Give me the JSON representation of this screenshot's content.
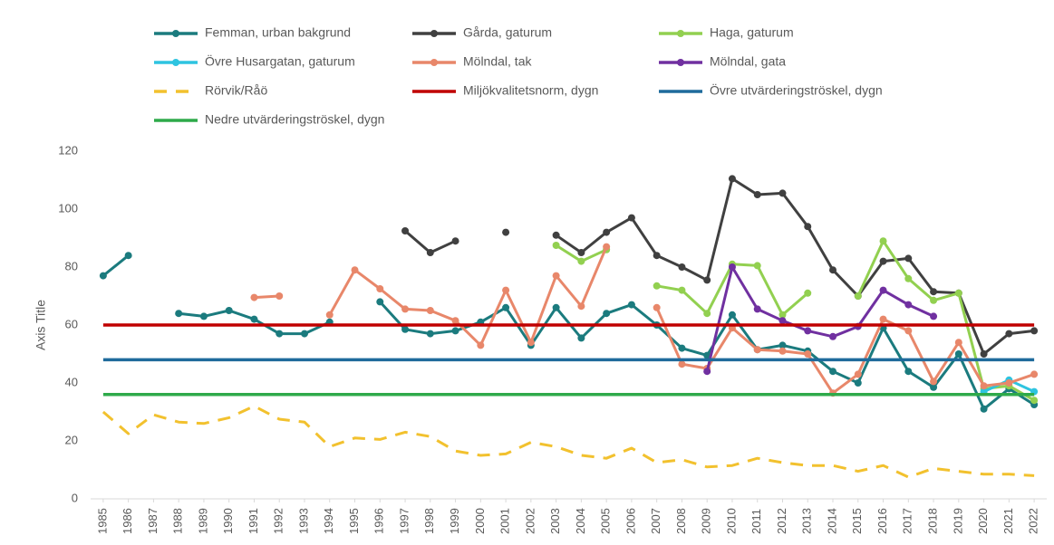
{
  "chart_data": {
    "type": "line",
    "y_label": "Axis Title",
    "categories": [
      "1985",
      "1986",
      "1987",
      "1988",
      "1989",
      "1990",
      "1991",
      "1992",
      "1993",
      "1994",
      "1995",
      "1996",
      "1997",
      "1998",
      "1999",
      "2000",
      "2001",
      "2002",
      "2003",
      "2004",
      "2005",
      "2006",
      "2007",
      "2008",
      "2009",
      "2010",
      "2011",
      "2012",
      "2013",
      "2014",
      "2015",
      "2016",
      "2017",
      "2018",
      "2019",
      "2020",
      "2021",
      "2022"
    ],
    "ylim": [
      0,
      120
    ],
    "yticks": [
      0,
      20,
      40,
      60,
      80,
      100,
      120
    ],
    "series": [
      {
        "name": "Femman, urban bakgrund",
        "color": "#1b7b7e",
        "markers": true,
        "values": [
          77,
          84,
          null,
          64,
          63,
          65,
          62,
          57,
          57,
          61,
          null,
          68,
          58.5,
          57,
          58,
          61,
          66,
          53,
          66,
          55.5,
          64,
          67,
          60,
          52,
          49.5,
          63.5,
          51.5,
          53,
          51,
          44,
          40,
          59,
          44,
          38.5,
          50,
          31,
          38,
          32.5
        ]
      },
      {
        "name": "Gårda, gaturum",
        "color": "#404040",
        "markers": true,
        "values": [
          null,
          null,
          null,
          null,
          null,
          null,
          null,
          null,
          null,
          null,
          null,
          null,
          92.5,
          85,
          89,
          null,
          92,
          null,
          91,
          85,
          92,
          97,
          84,
          80,
          75.5,
          110.5,
          105,
          105.5,
          94,
          79,
          70,
          82,
          83,
          71.5,
          71,
          50,
          57,
          58
        ]
      },
      {
        "name": "Haga, gaturum",
        "color": "#92d050",
        "markers": true,
        "values": [
          null,
          null,
          null,
          null,
          null,
          null,
          null,
          null,
          null,
          null,
          null,
          null,
          null,
          null,
          null,
          null,
          null,
          null,
          87.5,
          82,
          86,
          null,
          73.5,
          72,
          64,
          81,
          80.5,
          63.5,
          71,
          null,
          70,
          89,
          76,
          68.5,
          71,
          38,
          39,
          34
        ]
      },
      {
        "name": "Övre Husargatan, gaturum",
        "color": "#2ec4e0",
        "markers": true,
        "values": [
          null,
          null,
          null,
          null,
          null,
          null,
          null,
          null,
          null,
          null,
          null,
          null,
          null,
          null,
          null,
          null,
          null,
          null,
          null,
          null,
          null,
          null,
          null,
          null,
          null,
          null,
          null,
          null,
          null,
          null,
          null,
          null,
          null,
          null,
          null,
          37,
          41,
          37
        ]
      },
      {
        "name": "Mölndal, tak",
        "color": "#e8876a",
        "markers": true,
        "values": [
          null,
          null,
          null,
          null,
          null,
          null,
          69.5,
          70,
          null,
          63.5,
          79,
          72.5,
          65.5,
          65,
          61.5,
          53,
          72,
          54,
          77,
          66.5,
          87,
          null,
          66,
          46.5,
          45,
          59,
          51.5,
          51,
          50,
          36.5,
          43,
          62,
          58,
          40.5,
          54,
          39,
          40,
          43
        ]
      },
      {
        "name": "Mölndal, gata",
        "color": "#7030a0",
        "markers": true,
        "values": [
          null,
          null,
          null,
          null,
          null,
          null,
          null,
          null,
          null,
          null,
          null,
          null,
          null,
          null,
          null,
          null,
          null,
          null,
          null,
          null,
          null,
          null,
          null,
          null,
          44,
          80,
          65.5,
          61.5,
          58,
          56,
          59.5,
          72,
          67,
          63,
          null,
          null,
          null,
          null
        ]
      },
      {
        "name": "Rörvik/Råö",
        "color": "#f2c12e",
        "dashed": true,
        "values": [
          30,
          22.5,
          29,
          26.5,
          26,
          28,
          32,
          27.5,
          26.5,
          18,
          21,
          20.5,
          23,
          21.5,
          16.5,
          15,
          15.5,
          19.5,
          18,
          15,
          14,
          17.5,
          12.5,
          13.5,
          11,
          11.5,
          14,
          12.5,
          11.5,
          11.5,
          9.5,
          11.5,
          7.5,
          10.5,
          9.5,
          8.5,
          8.5,
          8
        ]
      },
      {
        "name": "Miljökvalitetsnorm, dygn",
        "color": "#c00000",
        "value": 60
      },
      {
        "name": "Övre utvärderingströskel, dygn",
        "color": "#1f6b9c",
        "value": 48
      },
      {
        "name": "Nedre utvärderingströskel, dygn",
        "color": "#2eaa4a",
        "value": 36
      }
    ]
  }
}
